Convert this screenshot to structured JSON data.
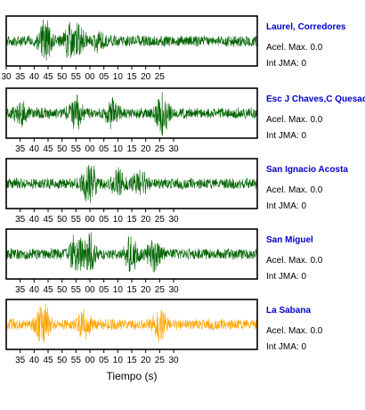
{
  "chart_data": {
    "type": "line",
    "xlabel": "Tiempo (s)",
    "tick_labels": [
      "30",
      "35",
      "40",
      "45",
      "50",
      "55",
      "00",
      "05",
      "10",
      "15",
      "20",
      "25",
      "30"
    ],
    "acel_label": "Acel. Max. 0.0",
    "jma_label": "Int JMA: 0",
    "panels": [
      {
        "name": "Laurel, Corredores",
        "name_color": "#0000cc",
        "trace_color": "#006400",
        "tick_labels": [
          "30",
          "35",
          "40",
          "45",
          "50",
          "55",
          "00",
          "05",
          "10",
          "15",
          "20",
          "25"
        ],
        "bursts": [
          [
            44,
            0.95
          ],
          [
            53,
            0.7
          ],
          [
            56,
            0.55
          ],
          [
            63,
            0.35
          ]
        ]
      },
      {
        "name": "Esc J Chaves,C Quesada",
        "name_color": "#0000cc",
        "trace_color": "#006400",
        "tick_labels": [
          "35",
          "40",
          "45",
          "50",
          "55",
          "00",
          "05",
          "10",
          "15",
          "20",
          "25",
          "30"
        ],
        "bursts": [
          [
            35,
            0.5
          ],
          [
            55,
            0.7
          ],
          [
            68,
            0.55
          ],
          [
            86,
            0.9
          ]
        ]
      },
      {
        "name": "San Ignacio Acosta",
        "name_color": "#0000cc",
        "trace_color": "#006400",
        "tick_labels": [
          "35",
          "40",
          "45",
          "50",
          "55",
          "00",
          "05",
          "10",
          "15",
          "20",
          "25",
          "30"
        ],
        "bursts": [
          [
            60,
            1.0
          ],
          [
            70,
            0.6
          ],
          [
            78,
            0.55
          ]
        ]
      },
      {
        "name": "San Miguel",
        "name_color": "#0000cc",
        "trace_color": "#006400",
        "tick_labels": [
          "35",
          "40",
          "45",
          "50",
          "55",
          "00",
          "05",
          "10",
          "15",
          "20",
          "25",
          "30"
        ],
        "bursts": [
          [
            55,
            0.85
          ],
          [
            60,
            0.95
          ],
          [
            75,
            0.8
          ],
          [
            83,
            0.75
          ]
        ]
      },
      {
        "name": "La Sabana",
        "name_color": "#0000cc",
        "trace_color": "#ffa500",
        "tick_labels": [
          "35",
          "40",
          "45",
          "50",
          "55",
          "00",
          "05",
          "10",
          "15",
          "20",
          "25",
          "30"
        ],
        "bursts": [
          [
            43,
            1.0
          ],
          [
            58,
            0.6
          ],
          [
            85,
            0.6
          ]
        ]
      }
    ]
  }
}
